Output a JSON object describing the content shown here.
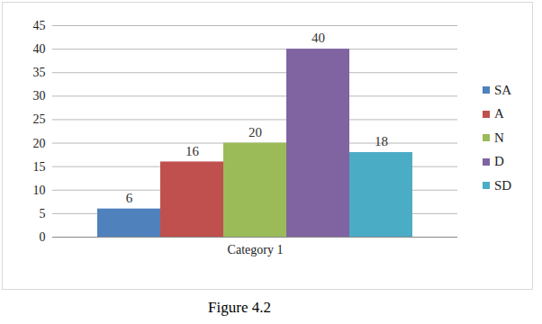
{
  "chart_data": {
    "type": "bar",
    "caption": "Figure 4.2",
    "categories": [
      "Category 1"
    ],
    "series": [
      {
        "name": "SA",
        "color": "#4f81bd",
        "values": [
          6
        ]
      },
      {
        "name": "A",
        "color": "#c0504d",
        "values": [
          16
        ]
      },
      {
        "name": "N",
        "color": "#9bbb59",
        "values": [
          20
        ]
      },
      {
        "name": "D",
        "color": "#8064a2",
        "values": [
          40
        ]
      },
      {
        "name": "SD",
        "color": "#4bacc6",
        "values": [
          18
        ]
      }
    ],
    "ylim": [
      0,
      45
    ],
    "yticks": [
      0,
      5,
      10,
      15,
      20,
      25,
      30,
      35,
      40,
      45
    ],
    "grid": true,
    "data_labels": true,
    "legend": "right"
  }
}
